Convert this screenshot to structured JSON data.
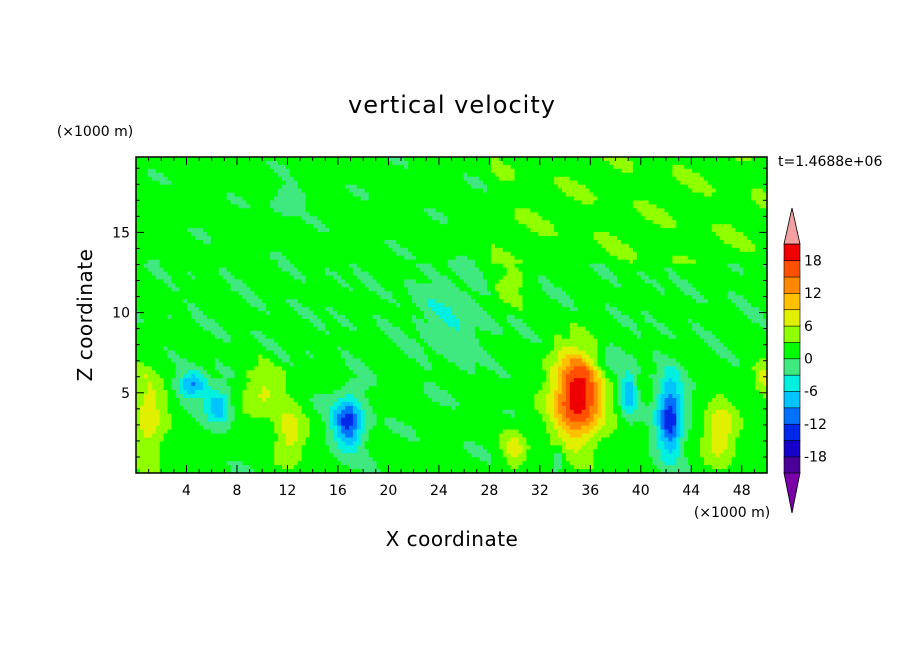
{
  "chart_data": {
    "type": "heatmap",
    "title": "vertical velocity",
    "xlabel": "X coordinate",
    "ylabel": "Z coordinate",
    "x_unit": "(×1000 m)",
    "y_unit": "(×1000 m)",
    "time_label": "t=1.4688e+06",
    "xlim": [
      0,
      50
    ],
    "ylim": [
      0,
      19.7
    ],
    "x_ticks": [
      4,
      8,
      12,
      16,
      20,
      24,
      28,
      32,
      36,
      40,
      44,
      48
    ],
    "y_ticks": [
      5,
      10,
      15
    ],
    "colorbar": {
      "levels": [
        -21,
        -18,
        -15,
        -12,
        -9,
        -6,
        -3,
        0,
        3,
        6,
        9,
        12,
        15,
        18,
        21
      ],
      "labels": [
        "18",
        "12",
        "6",
        "0",
        "-6",
        "-12",
        "-18"
      ],
      "label_values": [
        18,
        12,
        6,
        0,
        -6,
        -12,
        -18
      ],
      "colors": [
        "#7a00a8",
        "#4a0098",
        "#1400c8",
        "#0028e8",
        "#0070ff",
        "#00c4ff",
        "#00f0e0",
        "#40e880",
        "#00ff00",
        "#90ff00",
        "#e0f000",
        "#ffc000",
        "#ff8800",
        "#ff5000",
        "#ee0000",
        "#f4a0a0"
      ]
    },
    "features": [
      {
        "x": 35,
        "z": 4.8,
        "amp": 20,
        "sx": 2.0,
        "sz": 2.8
      },
      {
        "x": 1,
        "z": 3.5,
        "amp": 7,
        "sx": 1.4,
        "sz": 3.0
      },
      {
        "x": 10,
        "z": 5.0,
        "amp": 6,
        "sx": 1.7,
        "sz": 1.6
      },
      {
        "x": 12.2,
        "z": 2.3,
        "amp": 7,
        "sx": 1.2,
        "sz": 1.8
      },
      {
        "x": 46.3,
        "z": 2.5,
        "amp": 8,
        "sx": 1.3,
        "sz": 2.0
      },
      {
        "x": 30,
        "z": 1.5,
        "amp": 6,
        "sx": 1.0,
        "sz": 1.2
      },
      {
        "x": 29.5,
        "z": 11.5,
        "amp": 5,
        "sx": 1.3,
        "sz": 1.2
      },
      {
        "x": 49.8,
        "z": 6.0,
        "amp": 5,
        "sx": 0.8,
        "sz": 1.6
      },
      {
        "x": 16.8,
        "z": 3.2,
        "amp": -14,
        "sx": 1.2,
        "sz": 1.6
      },
      {
        "x": 4.5,
        "z": 5.5,
        "amp": -10,
        "sx": 1.2,
        "sz": 0.8
      },
      {
        "x": 6.5,
        "z": 4.2,
        "amp": -10,
        "sx": 1.0,
        "sz": 1.0
      },
      {
        "x": 42.3,
        "z": 3.5,
        "amp": -15,
        "sx": 1.0,
        "sz": 2.4
      },
      {
        "x": 39,
        "z": 5.0,
        "amp": -10,
        "sx": 0.6,
        "sz": 1.4
      },
      {
        "x": 25,
        "z": 10.0,
        "amp": -3.5,
        "sx": 3.0,
        "sz": 2.5
      },
      {
        "x": 12,
        "z": 17.0,
        "amp": -3.5,
        "sx": 1.3,
        "sz": 0.8
      },
      {
        "x": 37.5,
        "z": 7.0,
        "amp": -4,
        "sx": 1.2,
        "sz": 1.0
      },
      {
        "x": 33.5,
        "z": 1.0,
        "amp": -5,
        "sx": 0.4,
        "sz": 0.6
      }
    ]
  }
}
